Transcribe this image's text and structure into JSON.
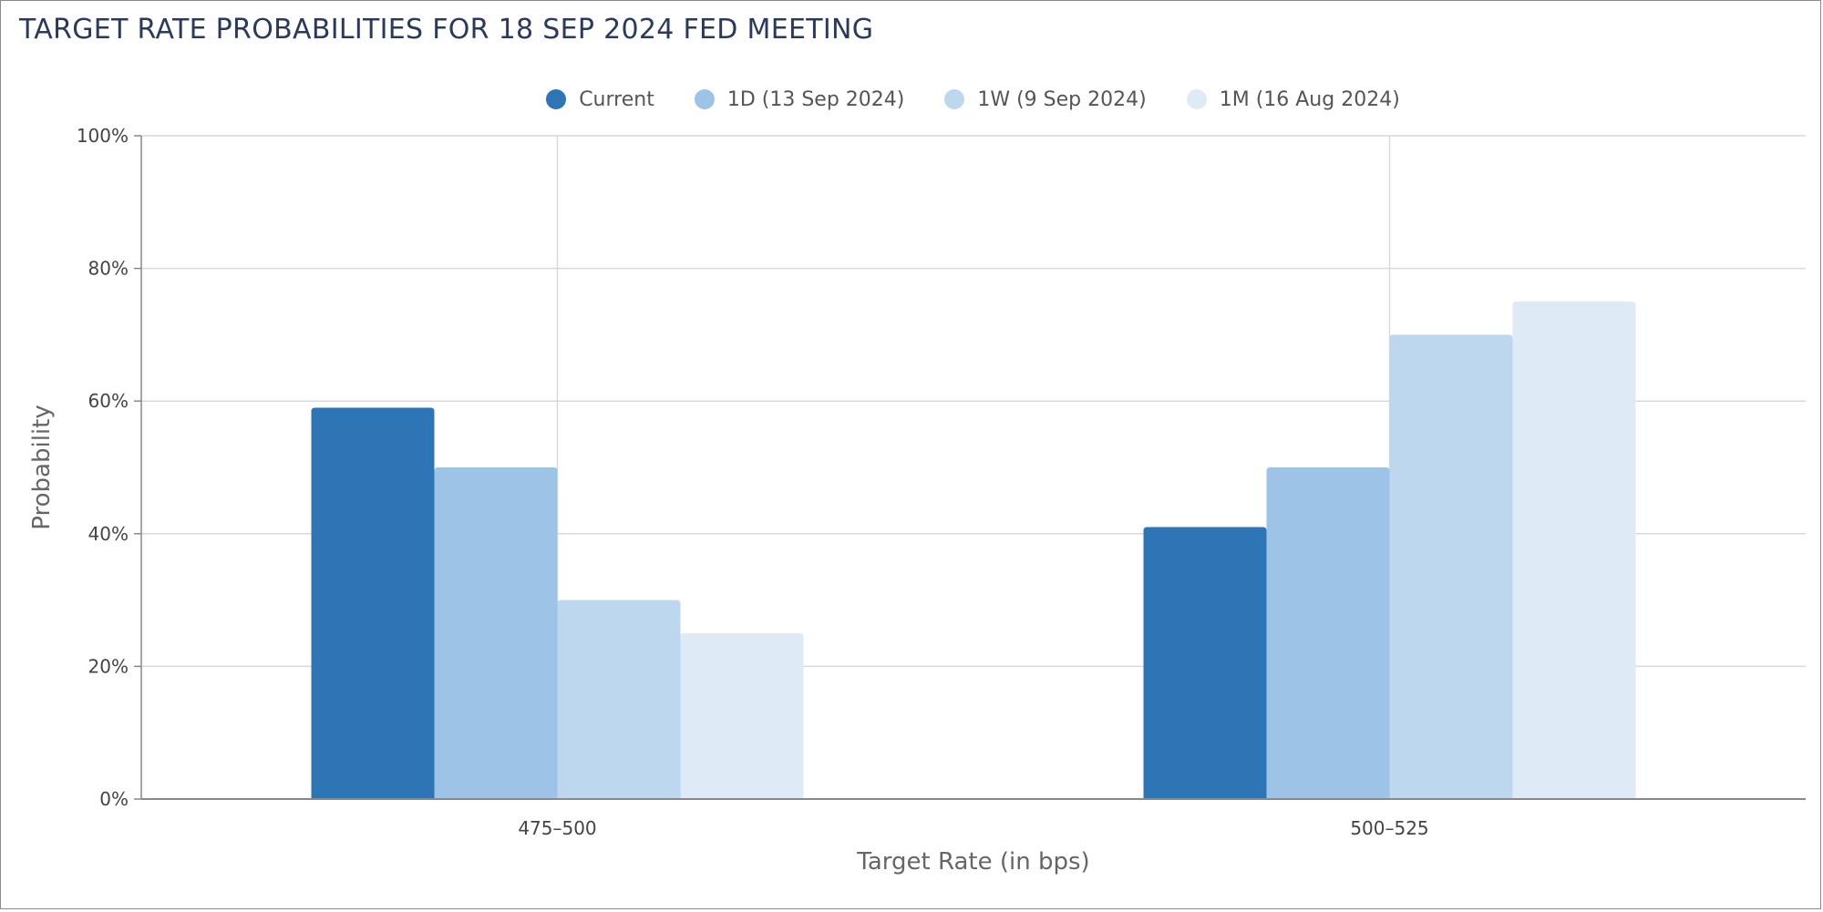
{
  "chart_data": {
    "type": "bar",
    "title": "TARGET RATE PROBABILITIES FOR 18 SEP 2024 FED MEETING",
    "xlabel": "Target Rate (in bps)",
    "ylabel": "Probability",
    "categories": [
      "475–500",
      "500–525"
    ],
    "series": [
      {
        "name": "Current",
        "color": "#2e75b6",
        "values": [
          59,
          41
        ]
      },
      {
        "name": "1D (13 Sep 2024)",
        "color": "#9dc3e6",
        "values": [
          50,
          50
        ]
      },
      {
        "name": "1W (9 Sep 2024)",
        "color": "#bdd7ee",
        "values": [
          30,
          70
        ]
      },
      {
        "name": "1M (16 Aug 2024)",
        "color": "#deebf7",
        "values": [
          25,
          75
        ]
      }
    ],
    "ylim": [
      0,
      100
    ],
    "yticks": [
      0,
      20,
      40,
      60,
      80,
      100
    ],
    "ytick_labels": [
      "0%",
      "20%",
      "40%",
      "60%",
      "80%",
      "100%"
    ],
    "grid": true,
    "legend_position": "top-center"
  }
}
